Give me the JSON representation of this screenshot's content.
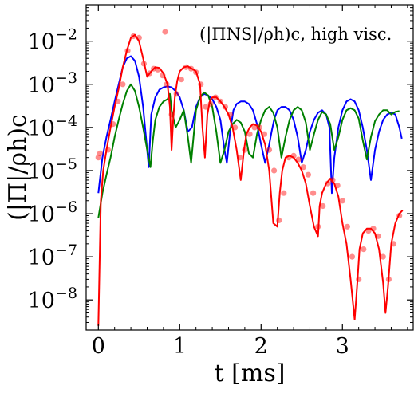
{
  "chart_data": {
    "type": "line",
    "xlabel": "t [ms]",
    "ylabel": "(|Π|/ρh)c",
    "xlim": [
      -0.15,
      3.87
    ],
    "ylim": [
      2e-09,
      0.07
    ],
    "yscale": "log",
    "x_ticks": [
      {
        "value": 0,
        "label": "0"
      },
      {
        "value": 1,
        "label": "1"
      },
      {
        "value": 2,
        "label": "2"
      },
      {
        "value": 3,
        "label": "3"
      }
    ],
    "y_ticks": [
      {
        "value": 1e-08,
        "base": "10",
        "exp": "−8"
      },
      {
        "value": 1e-07,
        "base": "10",
        "exp": "−7"
      },
      {
        "value": 1e-06,
        "base": "10",
        "exp": "−6"
      },
      {
        "value": 1e-05,
        "base": "10",
        "exp": "−5"
      },
      {
        "value": 0.0001,
        "base": "10",
        "exp": "−4"
      },
      {
        "value": 0.001,
        "base": "10",
        "exp": "−3"
      },
      {
        "value": 0.01,
        "base": "10",
        "exp": "−2"
      }
    ],
    "legend": {
      "label": "(|ΠNS|/ρh)c,  high visc.",
      "position": "top-right"
    },
    "series": [
      {
        "color": "#0000ff",
        "x": [
          0.0,
          0.05,
          0.1,
          0.15,
          0.2,
          0.25,
          0.3,
          0.35,
          0.4,
          0.45,
          0.5,
          0.55,
          0.6,
          0.62,
          0.65,
          0.7,
          0.75,
          0.8,
          0.85,
          0.9,
          0.95,
          1.0,
          1.05,
          1.1,
          1.15,
          1.2,
          1.25,
          1.3,
          1.35,
          1.4,
          1.45,
          1.5,
          1.55,
          1.58,
          1.62,
          1.66,
          1.7,
          1.75,
          1.8,
          1.85,
          1.9,
          1.95,
          2.0,
          2.05,
          2.1,
          2.13,
          2.16,
          2.2,
          2.25,
          2.3,
          2.35,
          2.4,
          2.45,
          2.5,
          2.55,
          2.6,
          2.65,
          2.7,
          2.75,
          2.8,
          2.84,
          2.87,
          2.9,
          2.95,
          3.0,
          3.05,
          3.1,
          3.15,
          3.2,
          3.25,
          3.3,
          3.35,
          3.4,
          3.45,
          3.5,
          3.55,
          3.6,
          3.65,
          3.7,
          3.73
        ],
        "y": [
          3e-06,
          2e-05,
          6e-05,
          0.00015,
          0.0004,
          0.001,
          0.0025,
          0.004,
          0.0045,
          0.0035,
          0.0015,
          0.0003,
          3e-05,
          1.2e-05,
          0.0002,
          0.0005,
          0.00075,
          0.00085,
          0.0009,
          0.00085,
          0.0007,
          0.0005,
          0.00025,
          8e-05,
          0.0001,
          0.0003,
          0.0005,
          0.0006,
          0.00055,
          0.00045,
          0.0003,
          0.00015,
          3e-05,
          1.5e-05,
          8e-05,
          0.00025,
          0.00035,
          0.0004,
          0.0004,
          0.00035,
          0.00025,
          0.00012,
          4e-05,
          1.5e-05,
          4e-05,
          8e-05,
          0.00015,
          0.00025,
          0.0003,
          0.0003,
          0.00025,
          0.00015,
          6e-05,
          1.5e-05,
          3e-05,
          8e-05,
          0.00015,
          0.00022,
          0.00025,
          0.0002,
          0.0001,
          3e-06,
          2e-05,
          0.0001,
          0.00025,
          0.0004,
          0.00045,
          0.0004,
          0.00025,
          0.0001,
          3e-05,
          6e-06,
          3e-05,
          8e-05,
          0.00015,
          0.0002,
          0.00022,
          0.0002,
          0.0001,
          5.5e-05
        ]
      },
      {
        "color": "#008000",
        "x": [
          0.0,
          0.05,
          0.1,
          0.15,
          0.2,
          0.25,
          0.3,
          0.35,
          0.4,
          0.45,
          0.5,
          0.55,
          0.6,
          0.64,
          0.67,
          0.7,
          0.75,
          0.8,
          0.85,
          0.88,
          0.9,
          0.95,
          1.0,
          1.05,
          1.1,
          1.14,
          1.17,
          1.2,
          1.25,
          1.3,
          1.35,
          1.4,
          1.45,
          1.5,
          1.55,
          1.6,
          1.65,
          1.7,
          1.75,
          1.8,
          1.85,
          1.9,
          1.95,
          2.0,
          2.05,
          2.1,
          2.15,
          2.2,
          2.25,
          2.3,
          2.35,
          2.4,
          2.45,
          2.5,
          2.55,
          2.6,
          2.65,
          2.7,
          2.75,
          2.8,
          2.85,
          2.9,
          2.95,
          3.0,
          3.05,
          3.1,
          3.15,
          3.2,
          3.25,
          3.3,
          3.35,
          3.4,
          3.45,
          3.5,
          3.55,
          3.6,
          3.65,
          3.7
        ],
        "y": [
          8e-07,
          3e-06,
          8e-06,
          2e-05,
          6e-05,
          0.00015,
          0.00035,
          0.0007,
          0.001,
          0.0007,
          0.0003,
          0.0001,
          3e-05,
          1.2e-05,
          5e-05,
          0.00015,
          0.0003,
          0.0004,
          0.00045,
          0.0006,
          0.00025,
          0.0001,
          0.00015,
          0.00025,
          6e-05,
          1.5e-05,
          6e-05,
          0.00025,
          0.0005,
          0.00065,
          0.00055,
          0.0003,
          8e-05,
          1.5e-05,
          3e-05,
          8e-05,
          0.00012,
          0.00015,
          0.00013,
          8e-05,
          2.5e-05,
          2e-05,
          7e-05,
          0.00015,
          0.00025,
          0.0003,
          0.00022,
          0.0001,
          2e-05,
          6e-05,
          0.00015,
          0.00025,
          0.0003,
          0.00025,
          0.00013,
          3e-05,
          7e-05,
          0.00015,
          0.00023,
          0.0002,
          0.00012,
          3e-05,
          6e-05,
          0.00015,
          0.00025,
          0.00028,
          0.00025,
          0.00016,
          5e-05,
          1.8e-05,
          6e-05,
          0.00014,
          0.0002,
          0.00025,
          0.00025,
          0.0002,
          0.00023,
          0.00024
        ]
      },
      {
        "color": "#ff0000",
        "x": [
          0.0,
          0.03,
          0.06,
          0.1,
          0.15,
          0.2,
          0.25,
          0.3,
          0.35,
          0.4,
          0.45,
          0.5,
          0.55,
          0.6,
          0.65,
          0.7,
          0.75,
          0.8,
          0.85,
          0.88,
          0.9,
          0.92,
          0.94,
          0.97,
          1.0,
          1.05,
          1.1,
          1.15,
          1.2,
          1.25,
          1.28,
          1.31,
          1.34,
          1.37,
          1.4,
          1.45,
          1.5,
          1.55,
          1.6,
          1.65,
          1.7,
          1.75,
          1.79,
          1.82,
          1.86,
          1.9,
          1.95,
          2.0,
          2.05,
          2.1,
          2.15,
          2.2,
          2.23,
          2.26,
          2.3,
          2.35,
          2.4,
          2.45,
          2.5,
          2.55,
          2.6,
          2.65,
          2.7,
          2.72,
          2.75,
          2.8,
          2.85,
          2.9,
          2.95,
          3.0,
          3.05,
          3.1,
          3.15,
          3.18,
          3.21,
          3.25,
          3.3,
          3.35,
          3.4,
          3.45,
          3.5,
          3.53,
          3.56,
          3.6,
          3.65,
          3.7,
          3.74
        ],
        "y": [
          2.5e-09,
          2e-06,
          1e-05,
          3e-05,
          0.0001,
          0.0003,
          0.0008,
          0.0025,
          0.006,
          0.012,
          0.014,
          0.01,
          0.004,
          0.0015,
          0.002,
          0.0025,
          0.0024,
          0.0018,
          0.001,
          0.0003,
          3e-05,
          0.00015,
          0.0005,
          0.0012,
          0.002,
          0.0025,
          0.0026,
          0.0023,
          0.002,
          0.001,
          0.0001,
          2e-05,
          0.0002,
          0.0004,
          0.0005,
          0.0005,
          0.0004,
          0.0003,
          0.0002,
          0.0001,
          3e-05,
          6e-06,
          3e-05,
          7e-05,
          0.0001,
          0.00012,
          0.00011,
          8e-05,
          4e-05,
          1e-05,
          6e-07,
          5e-07,
          3e-06,
          1e-05,
          2e-05,
          2.2e-05,
          2e-05,
          1.5e-05,
          1e-05,
          5e-06,
          1.5e-06,
          5e-07,
          3e-07,
          1.5e-06,
          3e-06,
          5e-06,
          6.5e-06,
          5e-06,
          2.5e-06,
          6e-07,
          2e-07,
          3e-08,
          3.5e-09,
          2e-08,
          1.5e-07,
          3.5e-07,
          4.5e-07,
          4.5e-07,
          3.5e-07,
          1.5e-07,
          2.5e-08,
          5e-09,
          2e-08,
          2e-07,
          6e-07,
          1e-06,
          1.2e-06
        ]
      }
    ],
    "markers": {
      "color": "#ff0000",
      "x": [
        0.0,
        0.02,
        0.12,
        0.18,
        0.24,
        0.3,
        0.36,
        0.43,
        0.5,
        0.56,
        0.63,
        0.68,
        0.73,
        0.79,
        0.84,
        0.9,
        0.96,
        1.02,
        1.08,
        1.14,
        1.2,
        1.26,
        1.32,
        1.38,
        1.44,
        1.5,
        1.56,
        1.62,
        1.68,
        1.74,
        1.8,
        1.86,
        1.92,
        1.98,
        2.04,
        2.1,
        2.16,
        2.22,
        2.28,
        2.34,
        2.4,
        2.46,
        2.52,
        2.58,
        2.64,
        2.7,
        2.76,
        2.82,
        2.88,
        2.94,
        3.0,
        3.06,
        3.12,
        3.2,
        3.26,
        3.32,
        3.38,
        3.44,
        3.5,
        3.57,
        3.63,
        3.7
      ],
      "y": [
        2e-05,
        2.5e-05,
        3e-05,
        0.00012,
        0.0004,
        0.001,
        0.006,
        0.013,
        0.012,
        0.003,
        0.0018,
        0.0023,
        0.0022,
        0.0016,
        0.001,
        0.0002,
        0.0006,
        0.0013,
        0.0025,
        0.0023,
        0.0019,
        0.001,
        0.0003,
        0.00035,
        0.0005,
        0.0004,
        0.0003,
        0.0002,
        0.0001,
        2e-05,
        3e-05,
        7e-05,
        0.0001,
        0.0001,
        7e-05,
        3e-05,
        1e-05,
        7e-07,
        3e-06,
        2e-05,
        2.2e-05,
        1.8e-05,
        1.2e-05,
        8e-06,
        3e-06,
        5e-07,
        1.5e-06,
        5e-06,
        6e-06,
        4.5e-06,
        2e-06,
        5e-07,
        1e-07,
        3e-08,
        1.5e-07,
        4e-07,
        4.5e-07,
        3e-07,
        1e-07,
        3e-08,
        2e-07,
        9e-07
      ]
    },
    "legend_marker_color": "#ff0000"
  }
}
